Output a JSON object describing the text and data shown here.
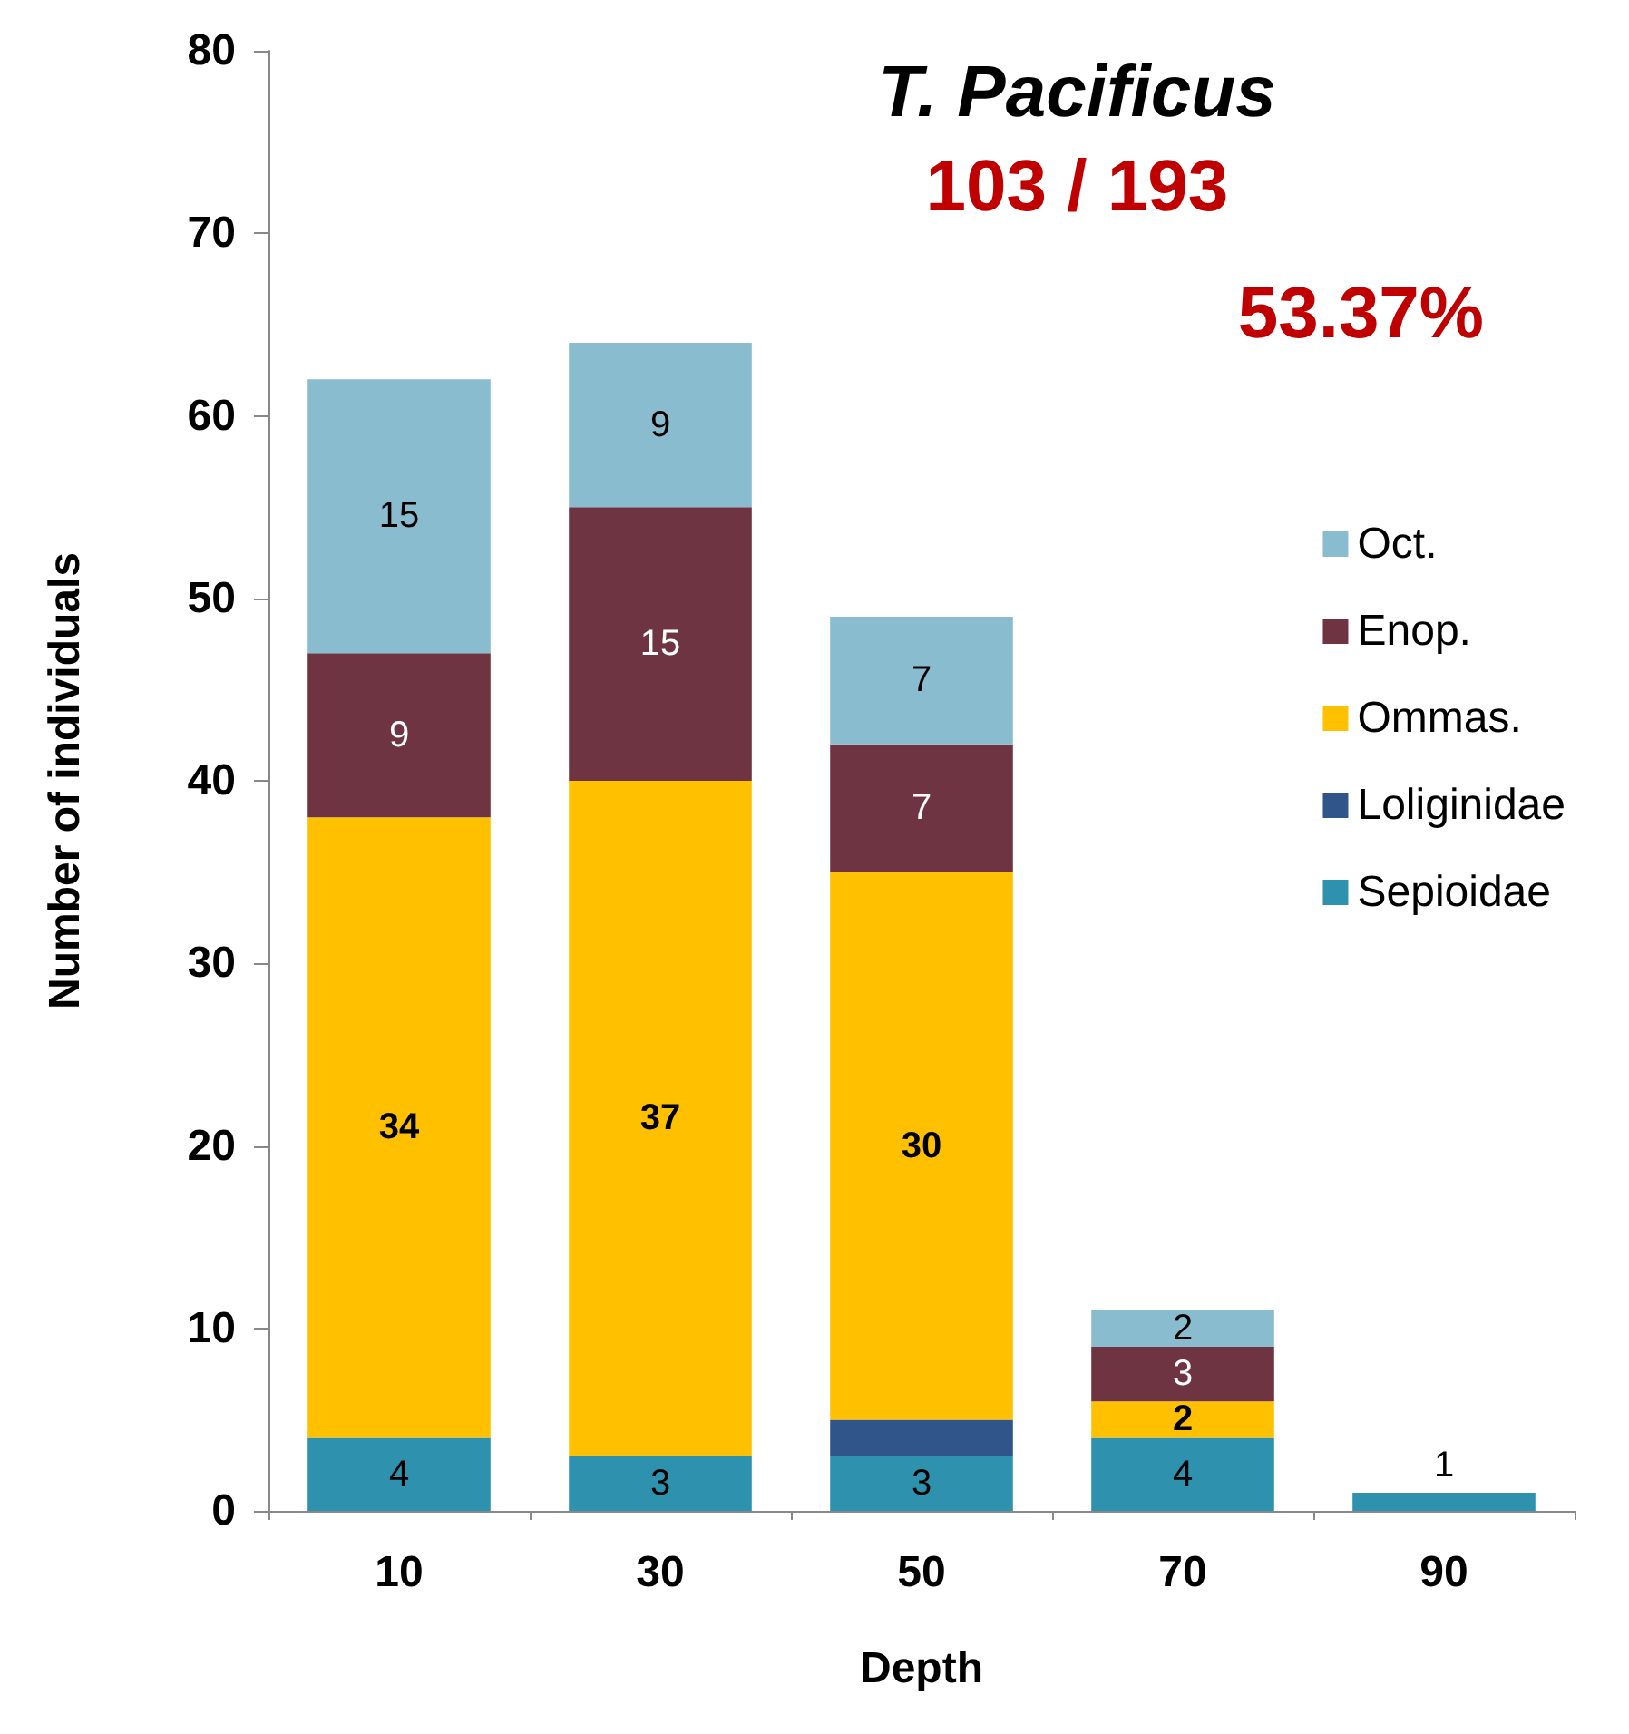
{
  "chart_data": {
    "type": "bar",
    "stacked": true,
    "title": "T. Pacificus",
    "subtitle": "103 / 193",
    "annotations": [
      "53.37%"
    ],
    "xlabel": "Depth",
    "ylabel": "Number of individuals",
    "categories": [
      "10",
      "30",
      "50",
      "70",
      "90"
    ],
    "series": [
      {
        "name": "Sepioidae",
        "color": "#2e92ae",
        "values": [
          4,
          3,
          3,
          4,
          1
        ],
        "value_labels": [
          "4",
          "3",
          "3",
          "4",
          "1"
        ]
      },
      {
        "name": "Loliginidae",
        "color": "#2f558a",
        "values": [
          null,
          null,
          2,
          null,
          null
        ]
      },
      {
        "name": "Ommas.",
        "color": "#ffc000",
        "values": [
          34,
          37,
          30,
          2,
          null
        ],
        "value_labels": [
          "34",
          "37",
          "30",
          "2",
          null
        ]
      },
      {
        "name": "Enop.",
        "color": "#6e3441",
        "values": [
          9,
          15,
          7,
          3,
          null
        ],
        "value_labels": [
          "9",
          "15",
          "7",
          "3",
          null
        ]
      },
      {
        "name": "Oct.",
        "color": "#8abccf",
        "values": [
          15,
          9,
          7,
          2,
          null
        ],
        "value_labels": [
          "15",
          "9",
          "7",
          "2",
          null
        ]
      }
    ],
    "ylim": [
      0,
      80
    ],
    "yticks": [
      0,
      10,
      20,
      30,
      40,
      50,
      60,
      70,
      80
    ],
    "grid": false,
    "legend": "right"
  }
}
